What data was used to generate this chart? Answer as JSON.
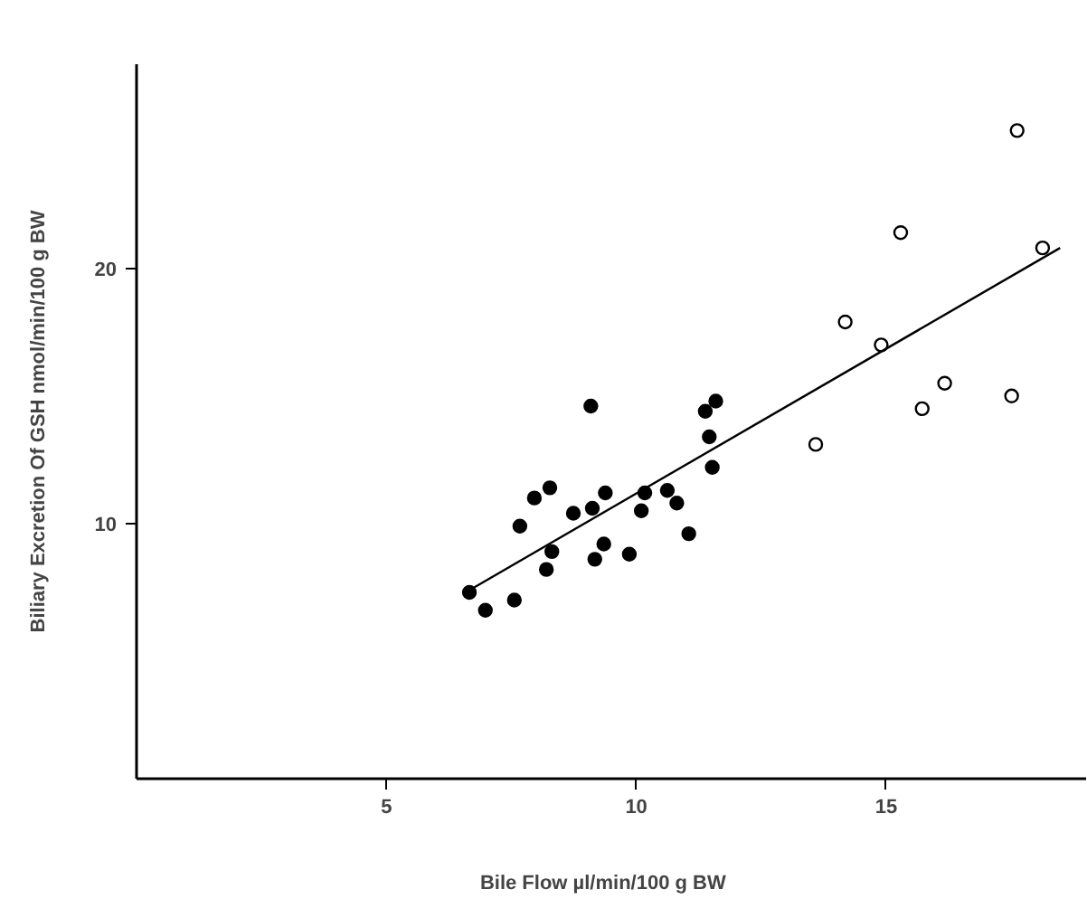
{
  "chart_data": {
    "type": "scatter",
    "xlabel": "Bile Flow    µl/min/100 g BW",
    "ylabel": "Biliary Excretion Of GSH nmol/min/100 g BW",
    "xlim": [
      0,
      19
    ],
    "ylim": [
      0,
      28
    ],
    "xticks": [
      5,
      10,
      15
    ],
    "yticks": [
      10,
      20
    ],
    "grid": false,
    "marker": "circle",
    "series": [
      {
        "color": "#000000",
        "x": [
          6.66,
          6.98,
          7.56,
          7.67,
          7.96,
          8.27,
          8.31,
          8.2,
          8.74,
          9.09,
          9.12,
          9.38,
          9.35,
          9.17,
          9.86,
          10.1,
          10.17,
          10.62,
          10.81,
          11.05,
          11.59,
          11.38,
          11.46,
          11.52
        ],
        "values": [
          7.3,
          6.6,
          7.0,
          9.9,
          11.0,
          11.4,
          8.9,
          8.2,
          10.4,
          14.6,
          10.6,
          11.2,
          9.2,
          8.6,
          8.8,
          10.5,
          11.2,
          11.3,
          10.8,
          9.6,
          14.8,
          14.4,
          13.4,
          12.2
        ]
      },
      {
        "color": "#ffffff",
        "x": [
          17.62,
          15.29,
          18.13,
          14.18,
          14.9,
          16.17,
          15.72,
          17.51,
          13.59
        ],
        "values": [
          25.4,
          21.4,
          20.8,
          17.9,
          17.0,
          15.5,
          14.5,
          15.0,
          13.1
        ]
      },
      {
        "type": "line",
        "color": "#000000",
        "marker": "none",
        "x": [
          6.67,
          18.48
        ],
        "values": [
          7.4,
          20.8
        ]
      }
    ]
  }
}
